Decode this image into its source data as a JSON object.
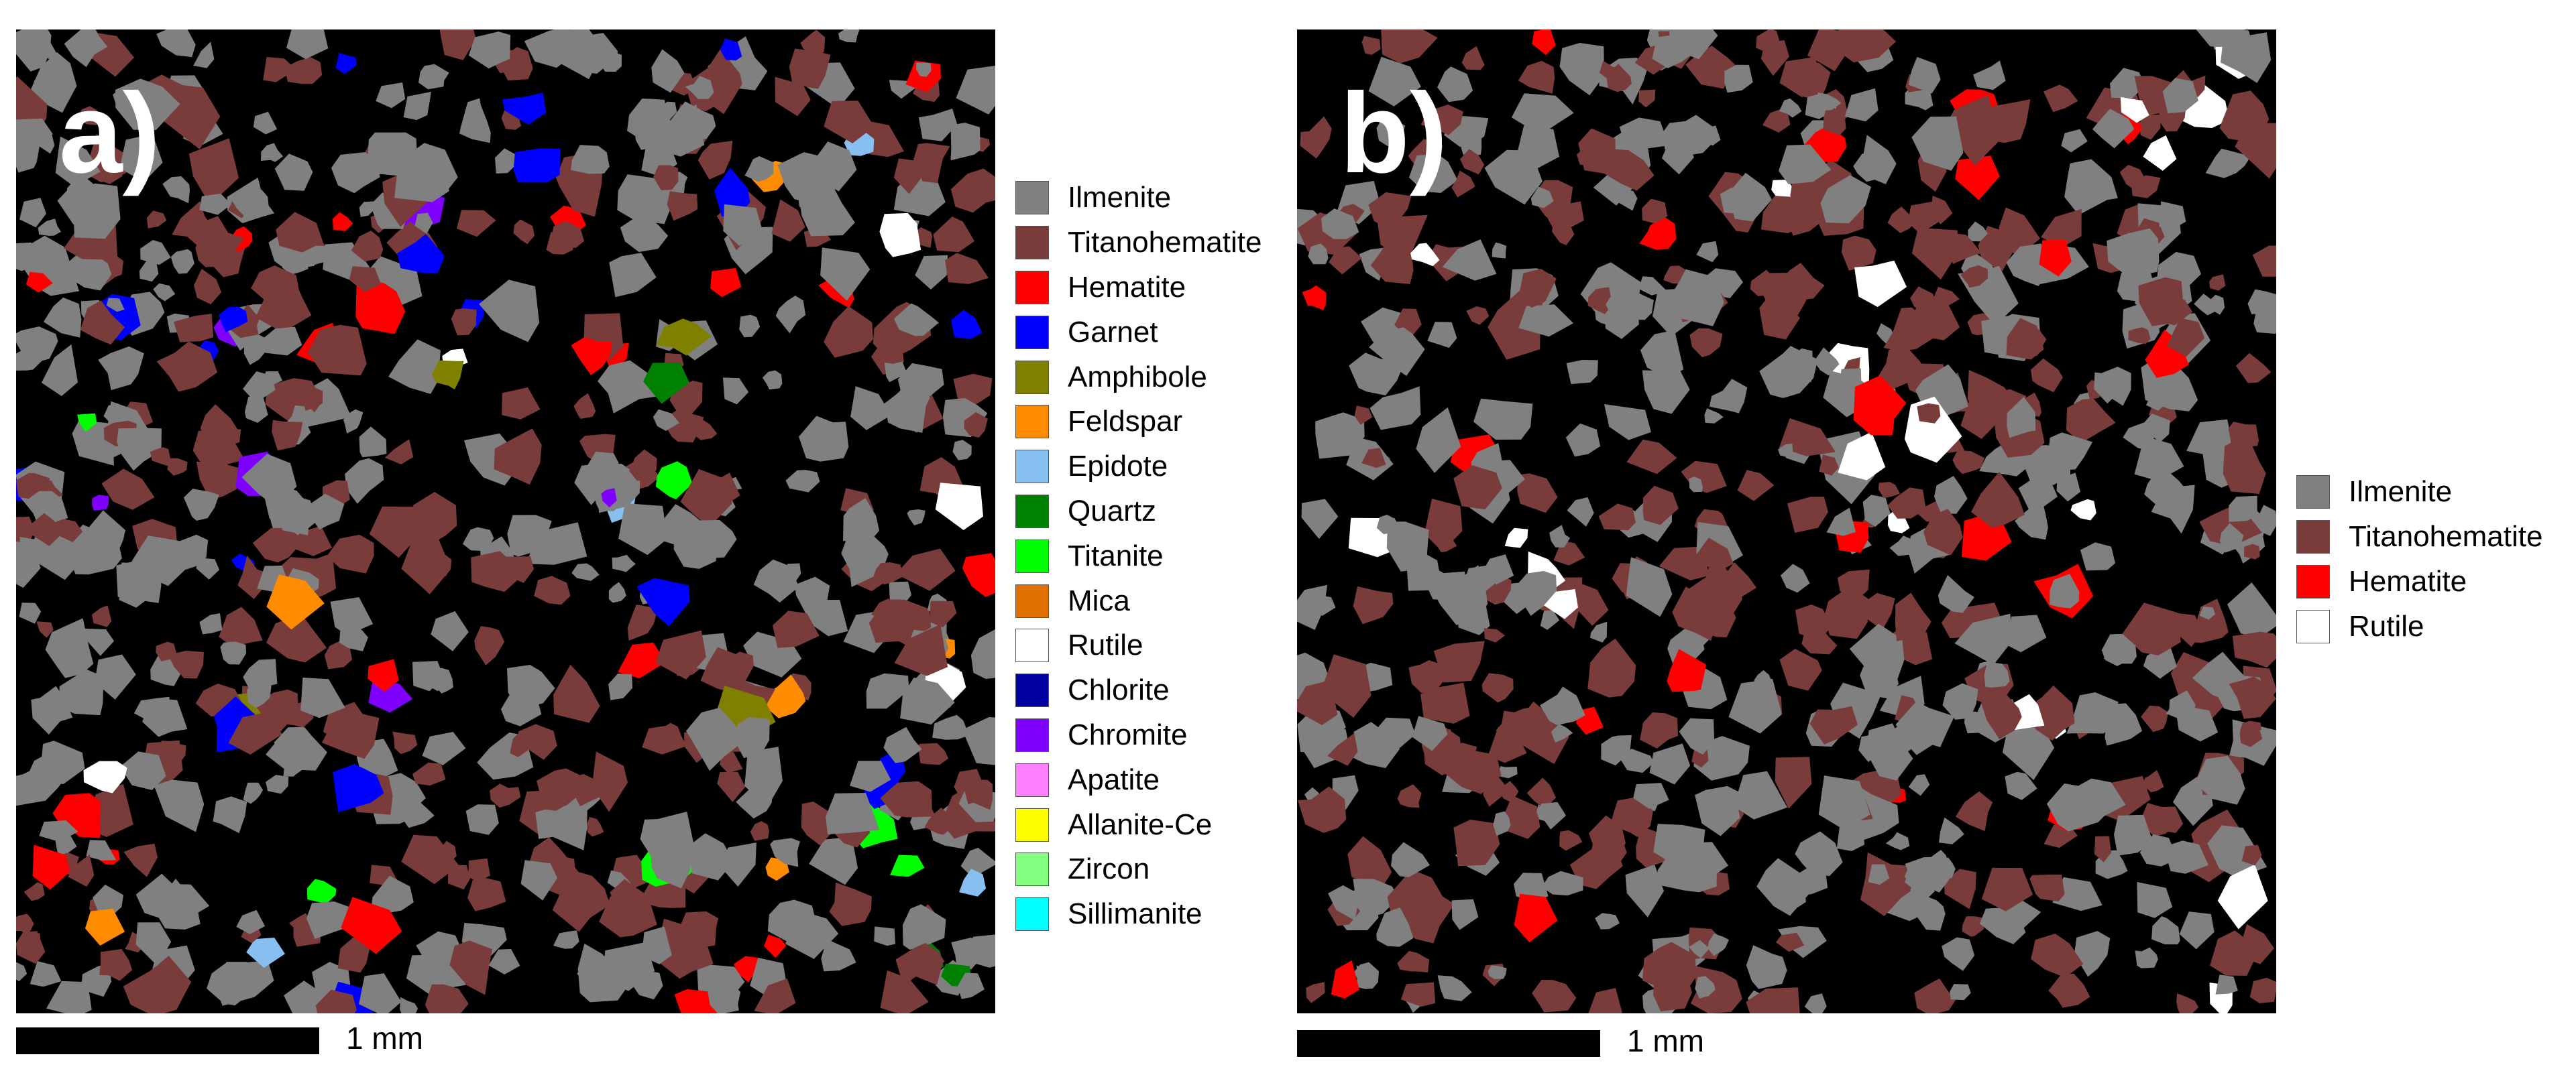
{
  "panels": [
    {
      "label": "a)",
      "legend": [
        {
          "name": "Ilmenite",
          "color": "#808080"
        },
        {
          "name": "Titanohematite",
          "color": "#7a3b3b"
        },
        {
          "name": "Hematite",
          "color": "#ff0000"
        },
        {
          "name": "Garnet",
          "color": "#0000ff"
        },
        {
          "name": "Amphibole",
          "color": "#808000"
        },
        {
          "name": "Feldspar",
          "color": "#ff8c00"
        },
        {
          "name": "Epidote",
          "color": "#87c0f0"
        },
        {
          "name": "Quartz",
          "color": "#008000"
        },
        {
          "name": "Titanite",
          "color": "#00ff00"
        },
        {
          "name": "Mica",
          "color": "#e07000"
        },
        {
          "name": "Rutile",
          "color": "#ffffff"
        },
        {
          "name": "Chlorite",
          "color": "#0000a0"
        },
        {
          "name": "Chromite",
          "color": "#8000ff"
        },
        {
          "name": "Apatite",
          "color": "#ff80ff"
        },
        {
          "name": "Allanite-Ce",
          "color": "#ffff00"
        },
        {
          "name": "Zircon",
          "color": "#80ff80"
        },
        {
          "name": "Sillimanite",
          "color": "#00ffff"
        }
      ],
      "scale_label": "1 mm"
    },
    {
      "label": "b)",
      "legend": [
        {
          "name": "Ilmenite",
          "color": "#808080"
        },
        {
          "name": "Titanohematite",
          "color": "#7a3b3b"
        },
        {
          "name": "Hematite",
          "color": "#ff0000"
        },
        {
          "name": "Rutile",
          "color": "#ffffff"
        }
      ],
      "scale_label": "1 mm"
    }
  ]
}
